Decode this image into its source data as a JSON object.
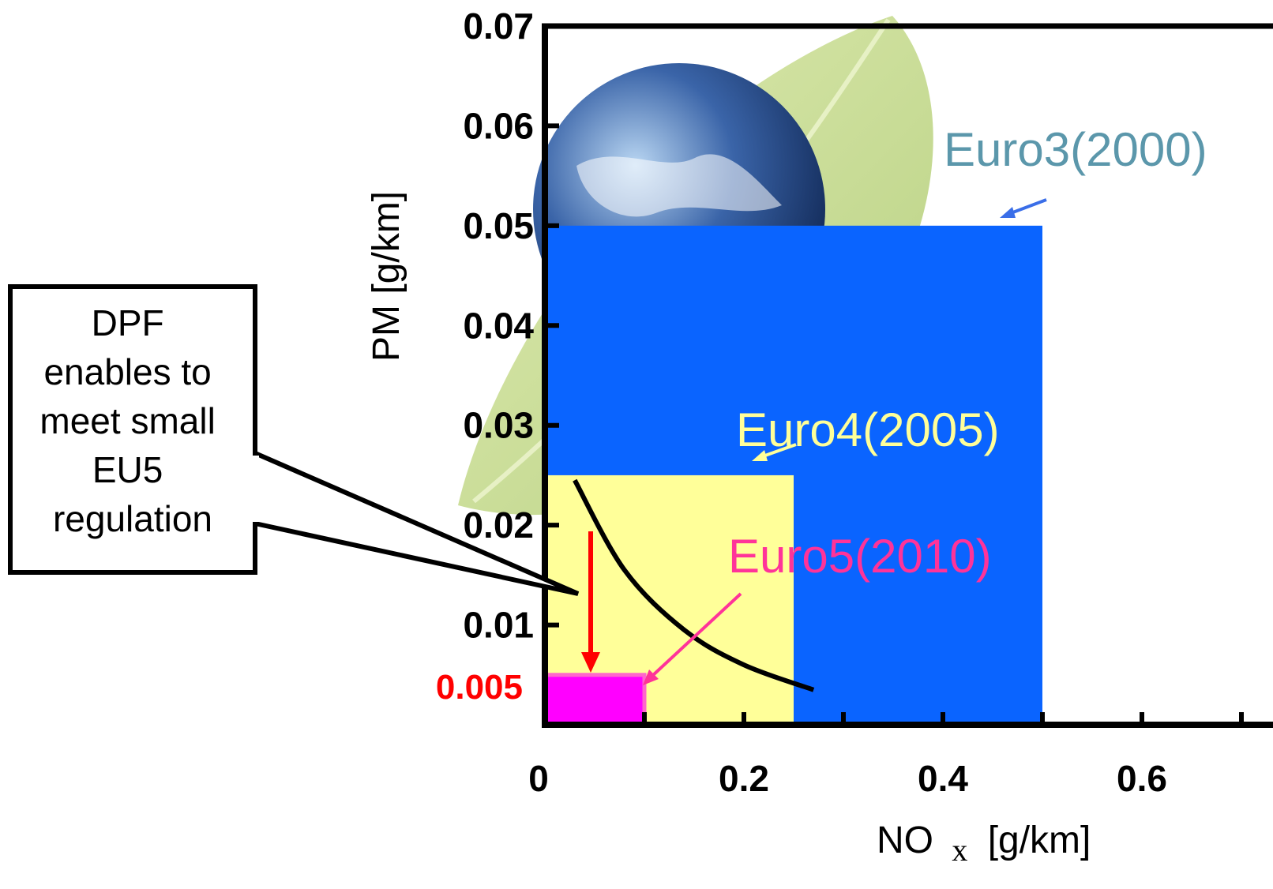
{
  "chart_data": {
    "type": "area",
    "xlabel": "NO",
    "xlabel_sub": "x",
    "xlabel_unit": "[g/km]",
    "ylabel": "PM [g/km]",
    "xlim": [
      0,
      0.7
    ],
    "ylim": [
      0,
      0.07
    ],
    "x_ticks": [
      "0",
      "0.2",
      "0.4",
      "0.6"
    ],
    "y_ticks": [
      "0.01",
      "0.02",
      "0.03",
      "0.04",
      "0.05",
      "0.06",
      "0.07"
    ],
    "extra_y_tick": {
      "label": "0.005",
      "value": 0.005,
      "color": "#ff0000"
    },
    "regions": [
      {
        "name": "Euro3(2000)",
        "nox": 0.5,
        "pm": 0.05,
        "color": "#0a64ff",
        "label_color": "#5b97ab"
      },
      {
        "name": "Euro4(2005)",
        "nox": 0.25,
        "pm": 0.025,
        "color": "#ffff99",
        "label_color": "#ffff99"
      },
      {
        "name": "Euro5(2010)",
        "nox": 0.1,
        "pm": 0.005,
        "color": "#ff00ff",
        "label_color": "#ff3399"
      }
    ],
    "tradeoff_curve": {
      "x": [
        0.03,
        0.08,
        0.14,
        0.2,
        0.27
      ],
      "y": [
        0.0245,
        0.0155,
        0.0095,
        0.006,
        0.0035
      ]
    },
    "grid": false,
    "background": "earth-and-leaf-image"
  },
  "callout": {
    "lines": [
      "DPF",
      "enables to",
      "meet small",
      "EU5",
      "regulation"
    ]
  }
}
